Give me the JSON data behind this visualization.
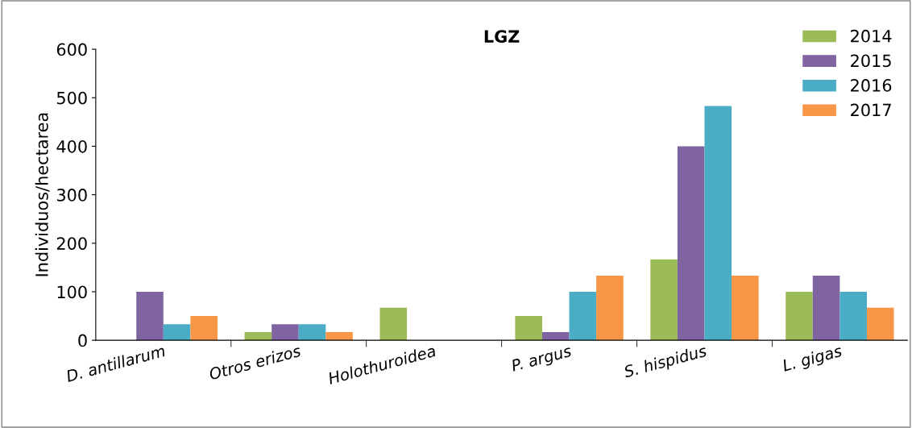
{
  "chart_data": {
    "type": "bar",
    "title": "LGZ",
    "ylabel": "Individuos/hectarea",
    "categories": [
      "D. antillarum",
      "Otros erizos",
      "Holothuroidea",
      "P. argus",
      "S. hispidus",
      "L. gigas"
    ],
    "series": [
      {
        "name": "2014",
        "color": "#9bbb59",
        "values": [
          0,
          17,
          67,
          50,
          167,
          100
        ]
      },
      {
        "name": "2015",
        "color": "#8064a2",
        "values": [
          100,
          33,
          0,
          17,
          400,
          133
        ]
      },
      {
        "name": "2016",
        "color": "#4bacc6",
        "values": [
          33,
          33,
          0,
          100,
          483,
          100
        ]
      },
      {
        "name": "2017",
        "color": "#f79646",
        "values": [
          50,
          17,
          0,
          133,
          133,
          67
        ]
      }
    ],
    "ylim": [
      0,
      600
    ],
    "yticks": [
      0,
      100,
      200,
      300,
      400,
      500,
      600
    ],
    "grid": false,
    "legend": "top right"
  }
}
